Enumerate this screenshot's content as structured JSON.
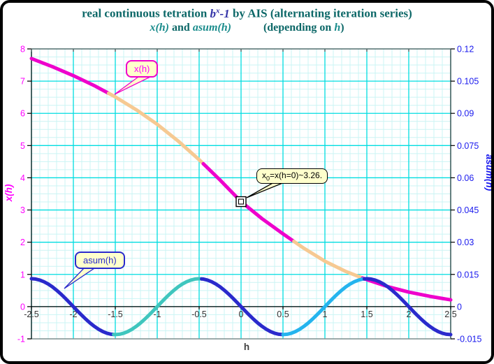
{
  "window": {
    "background": "#FFFFFF",
    "border_color": "#000000"
  },
  "colors": {
    "title_main": "#0D6868",
    "title_math": "#3434A8",
    "title_func": "#1A8C8C",
    "grid_major": "#00DDE0",
    "grid_minor": "#CBF4F4",
    "axis_left": "#FF00FF",
    "axis_right": "#1A1AEE",
    "axis_x_labels": "#333333",
    "frame_dark": "#555555",
    "frame_bottom": "#909090",
    "curve_magenta": "#EE00CC",
    "curve_tan": "#F6C992",
    "curve_blue": "#2A2ACC",
    "curve_teal": "#3FC6BE",
    "curve_sky": "#24B4EE",
    "callout_fill": "#FFFFCC"
  },
  "title": {
    "part1": "real continuous tetration ",
    "math_b": "b",
    "math_sup": "x",
    "math_minus": "-1",
    "part2": " by AIS (alternating iteration series)",
    "sub_x": "x(h)",
    "sub_and": " and ",
    "sub_asum": "asum(h)",
    "sub_depending": "(depending on ",
    "sub_h": "h",
    "sub_close": ")"
  },
  "callouts": {
    "xh_label": "x(h)",
    "asum_label": "asum(h)",
    "marker_base": "x",
    "marker_sub": "0",
    "marker_rest": "=x(h=0)~3.26."
  },
  "chart_data": {
    "type": "line",
    "title": "real continuous tetration b^x-1 by AIS (alternating iteration series)",
    "subtitle": "x(h) and asum(h) (depending on h)",
    "xlabel": "h",
    "grid": "major+minor cyan grid",
    "x_range": [
      -2.5,
      2.5
    ],
    "x_ticks": [
      "-2.5",
      "-2",
      "-1.5",
      "-1",
      "-0.5",
      "0",
      "0.5",
      "1",
      "1.5",
      "2",
      "2.5"
    ],
    "x_minor_step": 0.1,
    "left_axis": {
      "label": "x(h)",
      "range": [
        -1,
        8
      ],
      "ticks": [
        "8",
        "7",
        "6",
        "5",
        "4",
        "3",
        "2",
        "1",
        "0",
        "-1"
      ],
      "minor_step": 0.25,
      "color": "#FF00FF"
    },
    "right_axis": {
      "label": "asum(h)",
      "range": [
        -0.015,
        0.12
      ],
      "ticks": [
        "0.12",
        "0.105",
        "0.09",
        "0.075",
        "0.06",
        "0.045",
        "0.03",
        "0.015",
        "0",
        "-0.015"
      ],
      "color": "#1A1AEE"
    },
    "series": [
      {
        "name": "x(h)",
        "axis": "left",
        "points": [
          [
            -2.5,
            7.7
          ],
          [
            -2.25,
            7.45
          ],
          [
            -2.0,
            7.17
          ],
          [
            -1.75,
            6.86
          ],
          [
            -1.5,
            6.51
          ],
          [
            -1.25,
            6.11
          ],
          [
            -1.0,
            5.66
          ],
          [
            -0.75,
            5.14
          ],
          [
            -0.5,
            4.56
          ],
          [
            -0.25,
            3.93
          ],
          [
            0,
            3.26
          ],
          [
            0.25,
            2.73
          ],
          [
            0.5,
            2.26
          ],
          [
            0.75,
            1.81
          ],
          [
            1.0,
            1.41
          ],
          [
            1.25,
            1.09
          ],
          [
            1.5,
            0.84
          ],
          [
            1.75,
            0.62
          ],
          [
            2.0,
            0.45
          ],
          [
            2.25,
            0.32
          ],
          [
            2.5,
            0.21
          ]
        ],
        "segments": [
          {
            "from": -2.5,
            "to": -1.58,
            "color": "magenta"
          },
          {
            "from": -1.58,
            "to": -0.45,
            "color": "tan"
          },
          {
            "from": -0.45,
            "to": 0.63,
            "color": "magenta"
          },
          {
            "from": 0.63,
            "to": 1.45,
            "color": "tan"
          },
          {
            "from": 1.45,
            "to": 2.5,
            "color": "magenta"
          }
        ]
      },
      {
        "name": "asum(h)",
        "axis": "right",
        "formula": "asum(h) ~ -0.013*sin(pi*h)",
        "amplitude": -0.013,
        "period": 2,
        "segments": [
          {
            "from": -2.5,
            "to": -1.52,
            "color": "blue"
          },
          {
            "from": -1.52,
            "to": -0.47,
            "color": "teal"
          },
          {
            "from": -0.47,
            "to": 0.5,
            "color": "blue"
          },
          {
            "from": 0.5,
            "to": 1.47,
            "color": "sky"
          },
          {
            "from": 1.47,
            "to": 2.5,
            "color": "blue"
          }
        ]
      }
    ],
    "marker": {
      "h": 0,
      "value": 3.26,
      "label": "x0=x(h=0)~3.26."
    }
  }
}
